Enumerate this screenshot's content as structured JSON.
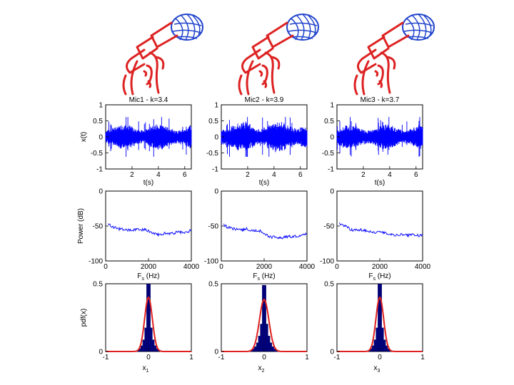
{
  "chart_data": {
    "type": "figure-grid",
    "columns": [
      {
        "mic": "Mic1",
        "title": "Mic1 - k=3.4",
        "amp": 0.22,
        "extra": 0.05,
        "seed": 11,
        "psd": [
          [
            100,
            -47
          ],
          [
            200,
            -49
          ],
          [
            400,
            -52
          ],
          [
            600,
            -54
          ],
          [
            800,
            -55
          ],
          [
            1000,
            -56
          ],
          [
            1200,
            -56
          ],
          [
            1400,
            -55
          ],
          [
            1600,
            -56
          ],
          [
            1800,
            -55
          ],
          [
            2000,
            -57
          ],
          [
            2200,
            -60
          ],
          [
            2400,
            -62
          ],
          [
            2600,
            -62
          ],
          [
            2800,
            -60
          ],
          [
            3000,
            -61
          ],
          [
            3200,
            -60
          ],
          [
            3400,
            -58
          ],
          [
            3600,
            -60
          ],
          [
            3800,
            -59
          ],
          [
            4000,
            -56
          ]
        ],
        "pdf_sigma": 0.09,
        "pdf_peak": 0.5,
        "xlabel_sub": "1"
      },
      {
        "mic": "Mic2",
        "title": "Mic2 - k=3.9",
        "amp": 0.25,
        "extra": 0.08,
        "seed": 23,
        "psd": [
          [
            100,
            -47
          ],
          [
            200,
            -50
          ],
          [
            400,
            -53
          ],
          [
            600,
            -54
          ],
          [
            800,
            -54
          ],
          [
            1000,
            -56
          ],
          [
            1200,
            -54
          ],
          [
            1400,
            -56
          ],
          [
            1600,
            -56
          ],
          [
            1800,
            -57
          ],
          [
            2000,
            -60
          ],
          [
            2200,
            -65
          ],
          [
            2400,
            -66
          ],
          [
            2600,
            -66
          ],
          [
            2800,
            -67
          ],
          [
            3000,
            -66
          ],
          [
            3200,
            -65
          ],
          [
            3400,
            -65
          ],
          [
            3600,
            -64
          ],
          [
            3800,
            -62
          ],
          [
            4000,
            -61
          ]
        ],
        "pdf_sigma": 0.11,
        "pdf_peak": 0.48,
        "xlabel_sub": "2"
      },
      {
        "mic": "Mic3",
        "title": "Mic3 - k=3.7",
        "amp": 0.21,
        "extra": 0.05,
        "seed": 37,
        "psd": [
          [
            100,
            -47
          ],
          [
            200,
            -48
          ],
          [
            400,
            -50
          ],
          [
            600,
            -54
          ],
          [
            800,
            -56
          ],
          [
            1000,
            -55
          ],
          [
            1200,
            -56
          ],
          [
            1400,
            -57
          ],
          [
            1600,
            -58
          ],
          [
            1800,
            -59
          ],
          [
            2000,
            -59
          ],
          [
            2200,
            -60
          ],
          [
            2400,
            -61
          ],
          [
            2600,
            -62
          ],
          [
            2800,
            -63
          ],
          [
            3000,
            -62
          ],
          [
            3200,
            -63
          ],
          [
            3400,
            -63
          ],
          [
            3600,
            -62
          ],
          [
            3800,
            -64
          ],
          [
            4000,
            -62
          ]
        ],
        "pdf_sigma": 0.09,
        "pdf_peak": 0.5,
        "xlabel_sub": "3"
      }
    ],
    "time_plot": {
      "ylabel": "x(t)",
      "xlabel": "t(s)",
      "xlim": [
        0,
        6.5
      ],
      "ylim": [
        -1,
        1
      ],
      "xticks": [
        2,
        4,
        6
      ],
      "yticks": [
        -1,
        -0.5,
        0,
        0.5,
        1
      ],
      "color": "#0000ff"
    },
    "psd_plot": {
      "ylabel": "Power (dB)",
      "xlabel_main": "F",
      "xlabel_sub": "s",
      "xlabel_unit": " (Hz)",
      "xlim": [
        0,
        4000
      ],
      "ylim": [
        -100,
        0
      ],
      "xticks": [
        0,
        2000,
        4000
      ],
      "yticks": [
        0,
        -50,
        -100
      ],
      "color": "#0000ff"
    },
    "pdf_plot": {
      "ylabel": "pdf(x)",
      "xlabel_main": "x",
      "xlim": [
        -1,
        1
      ],
      "ylim": [
        0,
        0.5
      ],
      "xticks": [
        -1,
        0,
        1
      ],
      "yticks": [
        0,
        0.5
      ],
      "hist_color": "#000080",
      "fit_color": "#e02020"
    },
    "mic_icon": {
      "body_color": "#dd2222",
      "head_color": "#2244cc"
    }
  }
}
